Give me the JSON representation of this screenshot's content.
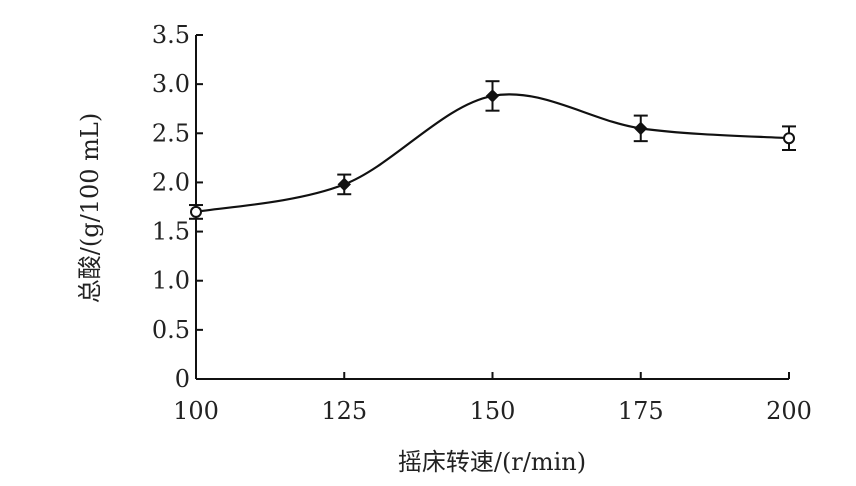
{
  "chart_data": {
    "type": "line",
    "xlabel": "摇床转速/(r/min)",
    "ylabel": "总酸/(g/100 mL)",
    "x_ticks": [
      "100",
      "125",
      "150",
      "175",
      "200"
    ],
    "y_ticks": [
      "0",
      "0.5",
      "1.0",
      "1.5",
      "2.0",
      "2.5",
      "3.0",
      "3.5"
    ],
    "xlim": [
      100,
      200
    ],
    "ylim": [
      0,
      3.5
    ],
    "grid": false,
    "series": [
      {
        "x": [
          100,
          125,
          150,
          175,
          200
        ],
        "values": [
          1.7,
          1.98,
          2.88,
          2.55,
          2.45
        ],
        "error": [
          0.07,
          0.1,
          0.15,
          0.13,
          0.12
        ],
        "markers": [
          "open-circle",
          "filled-diamond",
          "filled-diamond",
          "filled-diamond",
          "open-circle"
        ],
        "color": "#111111"
      }
    ]
  }
}
